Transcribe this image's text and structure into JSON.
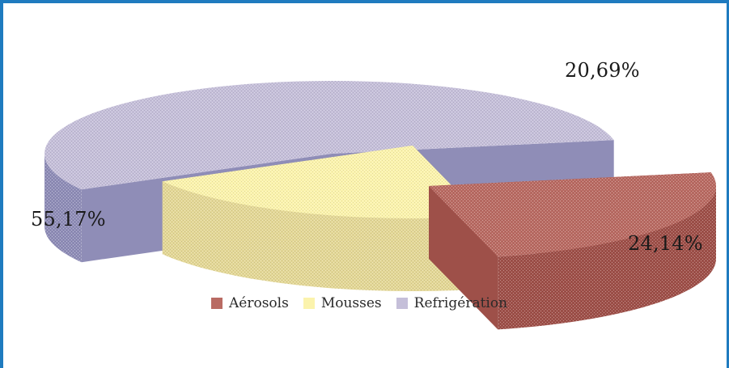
{
  "chart_data": {
    "type": "pie",
    "variant": "3d-exploded",
    "categories": [
      "Aérosols",
      "Mousses",
      "Refrigération"
    ],
    "values": [
      24.14,
      20.69,
      55.17
    ],
    "labels": [
      "24,14%",
      "20,69%",
      "55,17%"
    ],
    "colors": {
      "Aérosols": {
        "top": "#b96b63",
        "side": "#9e5049"
      },
      "Mousses": {
        "top": "#fbf3ad",
        "side": "#e3d796"
      },
      "Refrigération": {
        "top": "#c5bfd9",
        "side": "#8f8db7"
      }
    },
    "legend_position": "bottom-center"
  },
  "colors": {
    "frame": "#1f7bbf"
  }
}
